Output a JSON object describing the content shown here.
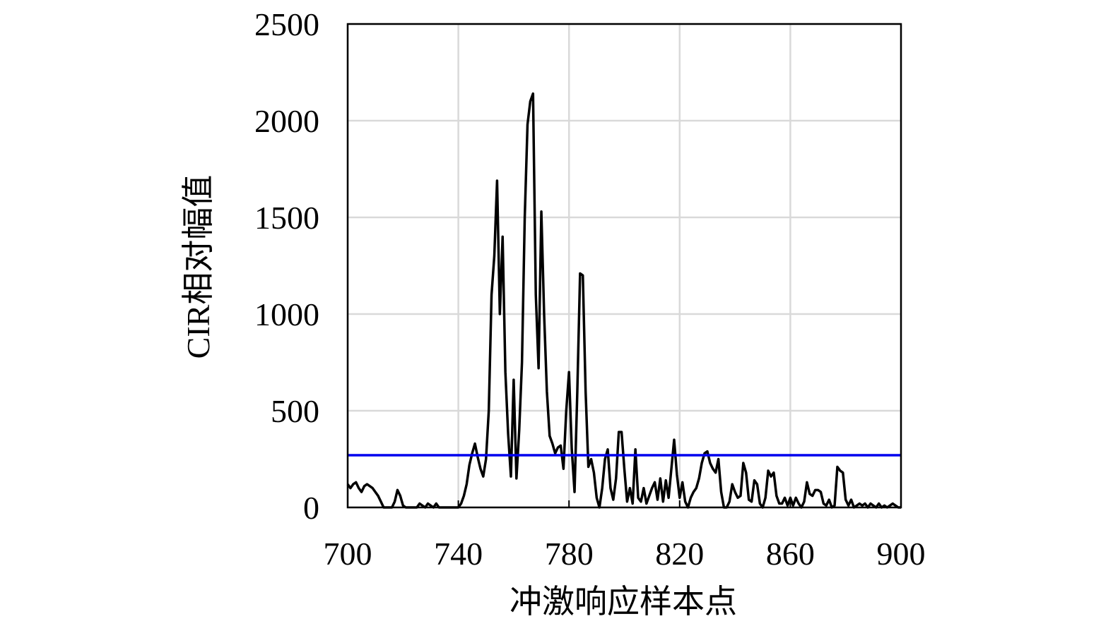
{
  "chart_data": {
    "type": "line",
    "xlabel": "冲激响应样本点",
    "ylabel": "CIR相对幅值",
    "x": [
      700,
      701,
      702,
      703,
      704,
      705,
      706,
      707,
      708,
      709,
      710,
      711,
      712,
      713,
      714,
      715,
      716,
      717,
      718,
      719,
      720,
      721,
      722,
      723,
      724,
      725,
      726,
      727,
      728,
      729,
      730,
      731,
      732,
      733,
      734,
      735,
      736,
      737,
      738,
      739,
      740,
      741,
      742,
      743,
      744,
      745,
      746,
      747,
      748,
      749,
      750,
      751,
      752,
      753,
      754,
      755,
      756,
      757,
      758,
      759,
      760,
      761,
      762,
      763,
      764,
      765,
      766,
      767,
      768,
      769,
      770,
      771,
      772,
      773,
      774,
      775,
      776,
      777,
      778,
      779,
      780,
      781,
      782,
      783,
      784,
      785,
      786,
      787,
      788,
      789,
      790,
      791,
      792,
      793,
      794,
      795,
      796,
      797,
      798,
      799,
      800,
      801,
      802,
      803,
      804,
      805,
      806,
      807,
      808,
      809,
      810,
      811,
      812,
      813,
      814,
      815,
      816,
      817,
      818,
      819,
      820,
      821,
      822,
      823,
      824,
      825,
      826,
      827,
      828,
      829,
      830,
      831,
      832,
      833,
      834,
      835,
      836,
      837,
      838,
      839,
      840,
      841,
      842,
      843,
      844,
      845,
      846,
      847,
      848,
      849,
      850,
      851,
      852,
      853,
      854,
      855,
      856,
      857,
      858,
      859,
      860,
      861,
      862,
      863,
      864,
      865,
      866,
      867,
      868,
      869,
      870,
      871,
      872,
      873,
      874,
      875,
      876,
      877,
      878,
      879,
      880,
      881,
      882,
      883,
      884,
      885,
      886,
      887,
      888,
      889,
      890,
      891,
      892,
      893,
      894,
      895,
      896,
      897,
      898,
      899,
      900
    ],
    "series": [
      {
        "color": "#000000",
        "values": [
          120,
          100,
          120,
          130,
          100,
          80,
          110,
          120,
          110,
          100,
          80,
          60,
          30,
          0,
          0,
          0,
          0,
          30,
          90,
          60,
          10,
          0,
          0,
          0,
          0,
          0,
          20,
          10,
          0,
          20,
          10,
          0,
          20,
          0,
          0,
          0,
          0,
          0,
          0,
          0,
          0,
          20,
          60,
          120,
          220,
          280,
          330,
          260,
          200,
          160,
          250,
          500,
          1100,
          1300,
          1690,
          1000,
          1400,
          700,
          380,
          160,
          660,
          150,
          400,
          750,
          1500,
          1980,
          2100,
          2140,
          1100,
          720,
          1530,
          1000,
          600,
          370,
          330,
          280,
          310,
          320,
          200,
          500,
          700,
          300,
          80,
          600,
          1210,
          1200,
          600,
          210,
          250,
          180,
          50,
          0,
          100,
          250,
          300,
          100,
          40,
          150,
          390,
          390,
          200,
          30,
          100,
          20,
          300,
          50,
          30,
          100,
          20,
          60,
          100,
          130,
          40,
          150,
          30,
          140,
          50,
          200,
          350,
          170,
          50,
          130,
          30,
          0,
          50,
          80,
          100,
          150,
          230,
          280,
          290,
          230,
          200,
          180,
          250,
          80,
          0,
          0,
          30,
          120,
          80,
          50,
          60,
          230,
          180,
          40,
          30,
          140,
          120,
          20,
          0,
          50,
          190,
          160,
          180,
          60,
          20,
          20,
          50,
          10,
          50,
          10,
          50,
          20,
          0,
          30,
          130,
          70,
          60,
          90,
          90,
          80,
          20,
          10,
          40,
          0,
          10,
          210,
          190,
          180,
          40,
          10,
          40,
          0,
          10,
          20,
          10,
          20,
          0,
          20,
          10,
          0,
          20,
          0,
          10,
          0,
          10,
          20,
          10,
          0,
          0
        ]
      }
    ],
    "threshold": 270,
    "threshold_color": "#0000ee",
    "xlim": [
      700,
      900
    ],
    "ylim": [
      0,
      2500
    ],
    "xticks": [
      700,
      740,
      780,
      820,
      860,
      900
    ],
    "yticks": [
      0,
      500,
      1000,
      1500,
      2000,
      2500
    ],
    "grid": true
  }
}
